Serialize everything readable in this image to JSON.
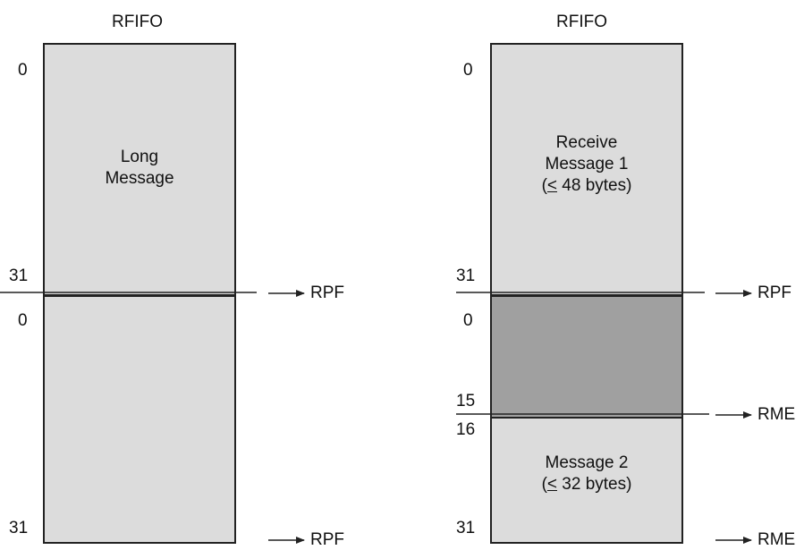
{
  "left_fifo": {
    "title": "RFIFO",
    "block1_text": [
      "Long",
      "Message"
    ],
    "labels": {
      "top0": "0",
      "mid31": "31",
      "mid0": "0",
      "bot31": "31"
    },
    "signals": {
      "mid": "RPF",
      "bottom": "RPF"
    }
  },
  "right_fifo": {
    "title": "RFIFO",
    "block1_text": [
      "Receive",
      "Message 1",
      "(",
      "<",
      " 48 bytes)"
    ],
    "block3_text": [
      "Message 2",
      "(",
      "<",
      " 32 bytes)"
    ],
    "labels": {
      "top0": "0",
      "mid31": "31",
      "mid0": "0",
      "b15": "15",
      "b16": "16",
      "bot31": "31"
    },
    "signals": {
      "mid": "RPF",
      "rme": "RME",
      "bottom": "RME"
    }
  },
  "colors": {
    "light_fill": "#dcdcdc",
    "dark_fill": "#a0a0a0",
    "stroke": "#222222"
  }
}
